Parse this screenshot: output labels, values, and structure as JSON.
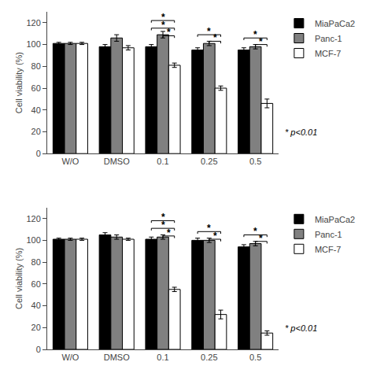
{
  "chart_data": [
    {
      "type": "bar",
      "categories": [
        "W/O",
        "DMSO",
        "0.1",
        "0.25",
        "0.5"
      ],
      "series": [
        {
          "name": "MiaPaCa2",
          "color": "#000000",
          "values": [
            101,
            98,
            98,
            95,
            95
          ],
          "errors": [
            1,
            2,
            2,
            2,
            2
          ]
        },
        {
          "name": "Panc-1",
          "color": "#808080",
          "values": [
            101,
            106,
            109,
            101,
            98
          ],
          "errors": [
            1,
            3,
            3,
            2,
            2
          ]
        },
        {
          "name": "MCF-7",
          "color": "#ffffff",
          "values": [
            101,
            97,
            81,
            60,
            46
          ],
          "errors": [
            1,
            2,
            2,
            2,
            4
          ]
        }
      ],
      "ylabel": "Cell viability (%)",
      "ylim": [
        0,
        130
      ],
      "yticks": [
        0,
        20,
        40,
        60,
        80,
        100,
        120
      ],
      "grid": false,
      "legend": "right",
      "note": "* p<0.01",
      "annotations": [
        {
          "category": "0.1",
          "from": "MiaPaCa2",
          "to": "MCF-7",
          "y": 115,
          "text": "*"
        },
        {
          "category": "0.1",
          "from": "Panc-1",
          "to": "MCF-7",
          "y": 108,
          "text": "*"
        },
        {
          "category": "0.25",
          "from": "MiaPaCa2",
          "to": "MCF-7",
          "y": 109,
          "text": "*"
        },
        {
          "category": "0.25",
          "from": "Panc-1",
          "to": "MCF-7",
          "y": 103,
          "text": "*"
        },
        {
          "category": "0.5",
          "from": "MiaPaCa2",
          "to": "MCF-7",
          "y": 106,
          "text": "*"
        },
        {
          "category": "0.5",
          "from": "Panc-1",
          "to": "MCF-7",
          "y": 100,
          "text": "*"
        },
        {
          "category": "0.1",
          "from": "MiaPaCa2",
          "to": "MCF-7",
          "y": 122,
          "text": "*"
        }
      ]
    },
    {
      "type": "bar",
      "categories": [
        "W/O",
        "DMSO",
        "0.1",
        "0.25",
        "0.5"
      ],
      "series": [
        {
          "name": "MiaPaCa2",
          "color": "#000000",
          "values": [
            101,
            105,
            101,
            100,
            94
          ],
          "errors": [
            1,
            2,
            2,
            2,
            2
          ]
        },
        {
          "name": "Panc-1",
          "color": "#808080",
          "values": [
            101,
            103,
            103,
            100,
            97
          ],
          "errors": [
            1,
            2,
            2,
            2,
            2
          ]
        },
        {
          "name": "MCF-7",
          "color": "#ffffff",
          "values": [
            101,
            101,
            55,
            32,
            15
          ],
          "errors": [
            1,
            1,
            2,
            4,
            2
          ]
        }
      ],
      "ylabel": "Cell viability (%)",
      "ylim": [
        0,
        130
      ],
      "yticks": [
        0,
        20,
        40,
        60,
        80,
        100,
        120
      ],
      "grid": false,
      "legend": "right",
      "note": "* p<0.01",
      "annotations": [
        {
          "category": "0.1",
          "from": "MiaPaCa2",
          "to": "MCF-7",
          "y": 111,
          "text": "*"
        },
        {
          "category": "0.1",
          "from": "Panc-1",
          "to": "MCF-7",
          "y": 104,
          "text": "*"
        },
        {
          "category": "0.25",
          "from": "MiaPaCa2",
          "to": "MCF-7",
          "y": 108,
          "text": "*"
        },
        {
          "category": "0.25",
          "from": "Panc-1",
          "to": "MCF-7",
          "y": 101,
          "text": "*"
        },
        {
          "category": "0.5",
          "from": "MiaPaCa2",
          "to": "MCF-7",
          "y": 105,
          "text": "*"
        },
        {
          "category": "0.5",
          "from": "Panc-1",
          "to": "MCF-7",
          "y": 99,
          "text": "*"
        },
        {
          "category": "0.1",
          "from": "MiaPaCa2",
          "to": "MCF-7",
          "y": 118,
          "text": "*"
        }
      ]
    }
  ]
}
